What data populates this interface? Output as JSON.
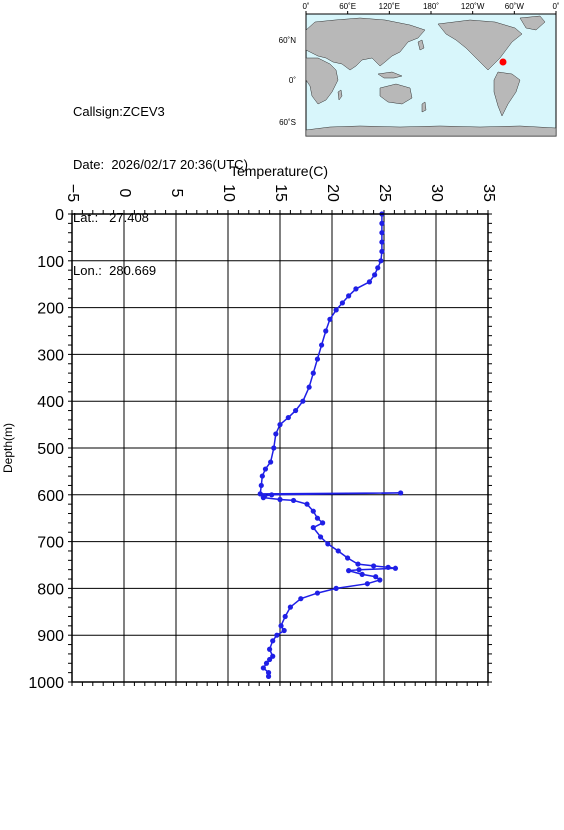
{
  "station": {
    "callsign_label": "Callsign:",
    "callsign": "ZCEV3",
    "date_label": "Date:",
    "date": "2026/02/17 20:36(UTC)",
    "lat_label": "Lat.:",
    "lat": "27.408",
    "lon_label": "Lon.:",
    "lon": "280.669"
  },
  "map": {
    "lon_ticks": [
      "0˚",
      "60˚E",
      "120˚E",
      "180˚",
      "120˚W",
      "60˚W",
      "0˚"
    ],
    "lat_ticks": [
      "60˚N",
      "0˚",
      "60˚S"
    ],
    "ocean_color": "#d8f6fb",
    "land_color": "#b8b8b8",
    "marker_color": "#ff0000"
  },
  "chart_data": {
    "type": "line",
    "title": "",
    "xlabel": "Temperature(C)",
    "ylabel": "Depth(m)",
    "xlim": [
      -5,
      35
    ],
    "ylim": [
      1000,
      0
    ],
    "x_ticks": [
      "−5",
      "0",
      "5",
      "10",
      "15",
      "20",
      "25",
      "30",
      "35"
    ],
    "y_ticks": [
      "0",
      "100",
      "200",
      "300",
      "400",
      "500",
      "600",
      "700",
      "800",
      "900",
      "1000"
    ],
    "grid": true,
    "series_color": "#1f1fe6",
    "series": [
      {
        "points": [
          [
            24.8,
            0
          ],
          [
            24.8,
            20
          ],
          [
            24.8,
            40
          ],
          [
            24.8,
            60
          ],
          [
            24.8,
            80
          ],
          [
            24.7,
            100
          ],
          [
            24.4,
            115
          ],
          [
            24.1,
            130
          ],
          [
            23.6,
            145
          ],
          [
            22.3,
            160
          ],
          [
            21.6,
            175
          ],
          [
            21.0,
            190
          ],
          [
            20.4,
            205
          ],
          [
            19.8,
            225
          ],
          [
            19.4,
            250
          ],
          [
            19.0,
            280
          ],
          [
            18.6,
            310
          ],
          [
            18.2,
            340
          ],
          [
            17.8,
            370
          ],
          [
            17.2,
            400
          ],
          [
            16.5,
            420
          ],
          [
            15.8,
            435
          ],
          [
            15.0,
            450
          ],
          [
            14.6,
            470
          ],
          [
            14.4,
            500
          ],
          [
            14.1,
            530
          ],
          [
            13.6,
            545
          ],
          [
            13.3,
            560
          ],
          [
            13.2,
            580
          ],
          [
            13.1,
            598
          ],
          [
            26.6,
            596
          ],
          [
            14.2,
            600
          ],
          [
            13.5,
            603
          ],
          [
            13.4,
            606
          ],
          [
            15.0,
            610
          ],
          [
            16.3,
            612
          ],
          [
            17.6,
            620
          ],
          [
            18.2,
            635
          ],
          [
            18.6,
            650
          ],
          [
            19.1,
            660
          ],
          [
            18.2,
            670
          ],
          [
            18.9,
            690
          ],
          [
            19.6,
            705
          ],
          [
            20.6,
            720
          ],
          [
            21.5,
            735
          ],
          [
            22.5,
            748
          ],
          [
            24.0,
            752
          ],
          [
            25.4,
            755
          ],
          [
            26.1,
            757
          ],
          [
            22.6,
            760
          ],
          [
            21.6,
            762
          ],
          [
            22.9,
            770
          ],
          [
            24.2,
            775
          ],
          [
            24.6,
            782
          ],
          [
            23.4,
            790
          ],
          [
            20.4,
            800
          ],
          [
            18.6,
            810
          ],
          [
            17.0,
            822
          ],
          [
            16.0,
            840
          ],
          [
            15.5,
            860
          ],
          [
            15.1,
            880
          ],
          [
            15.4,
            890
          ],
          [
            14.7,
            900
          ],
          [
            14.3,
            912
          ],
          [
            14.0,
            930
          ],
          [
            14.3,
            945
          ],
          [
            14.0,
            952
          ],
          [
            13.7,
            960
          ],
          [
            13.4,
            970
          ],
          [
            13.9,
            980
          ],
          [
            13.9,
            988
          ]
        ]
      }
    ]
  }
}
